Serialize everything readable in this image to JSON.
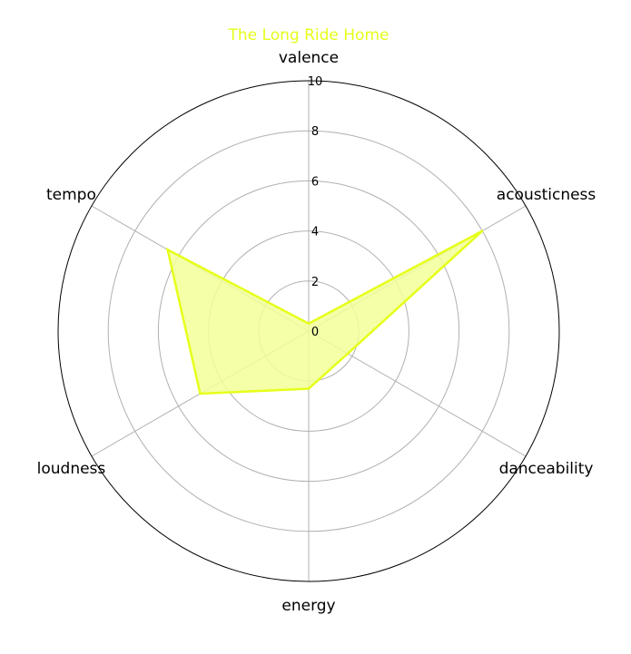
{
  "chart_data": {
    "type": "radar",
    "title": "The Long Ride Home",
    "axes": [
      "valence",
      "acousticness",
      "danceability",
      "energy",
      "loudness",
      "tempo"
    ],
    "series": [
      {
        "values": [
          0.3,
          8.0,
          1.8,
          2.3,
          5.0,
          6.5
        ]
      }
    ],
    "rlim": [
      0,
      10
    ],
    "r_ticks": [
      "0",
      "2",
      "4",
      "6",
      "8",
      "10"
    ],
    "grid": true,
    "colors": {
      "series_line": "#e6ff1a",
      "series_fill": "#f2ff99",
      "title": "#e6ff1a",
      "grid": "#b0b0b0",
      "outer_ring": "#000000"
    }
  }
}
